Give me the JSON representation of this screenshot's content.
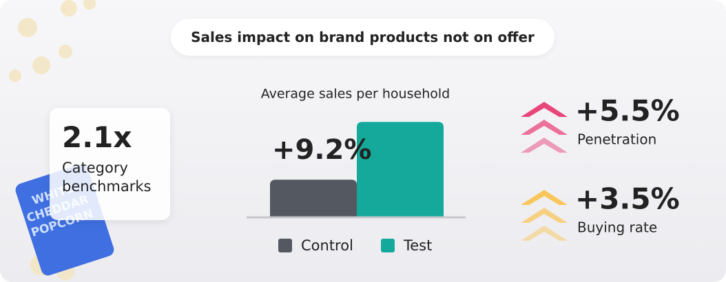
{
  "title": "Sales impact on brand products not on offer",
  "benchmark": {
    "value": "2.1x",
    "label": "Category benchmarks"
  },
  "package_label": [
    "WHITE",
    "CHEDDAR",
    "POPCORN"
  ],
  "chart_data": {
    "type": "bar",
    "title": "Average sales per household",
    "categories": [
      "Control",
      "Test"
    ],
    "values": [
      100,
      109.2
    ],
    "colors": [
      "#545861",
      "#14a99a"
    ],
    "ylim": [
      94,
      110
    ],
    "annotation": "+9.2%",
    "legend": true
  },
  "metrics": [
    {
      "value": "+5.5%",
      "label": "Penetration",
      "color": "#e8467a"
    },
    {
      "value": "+3.5%",
      "label": "Buying rate",
      "color": "#f8c65a"
    }
  ]
}
